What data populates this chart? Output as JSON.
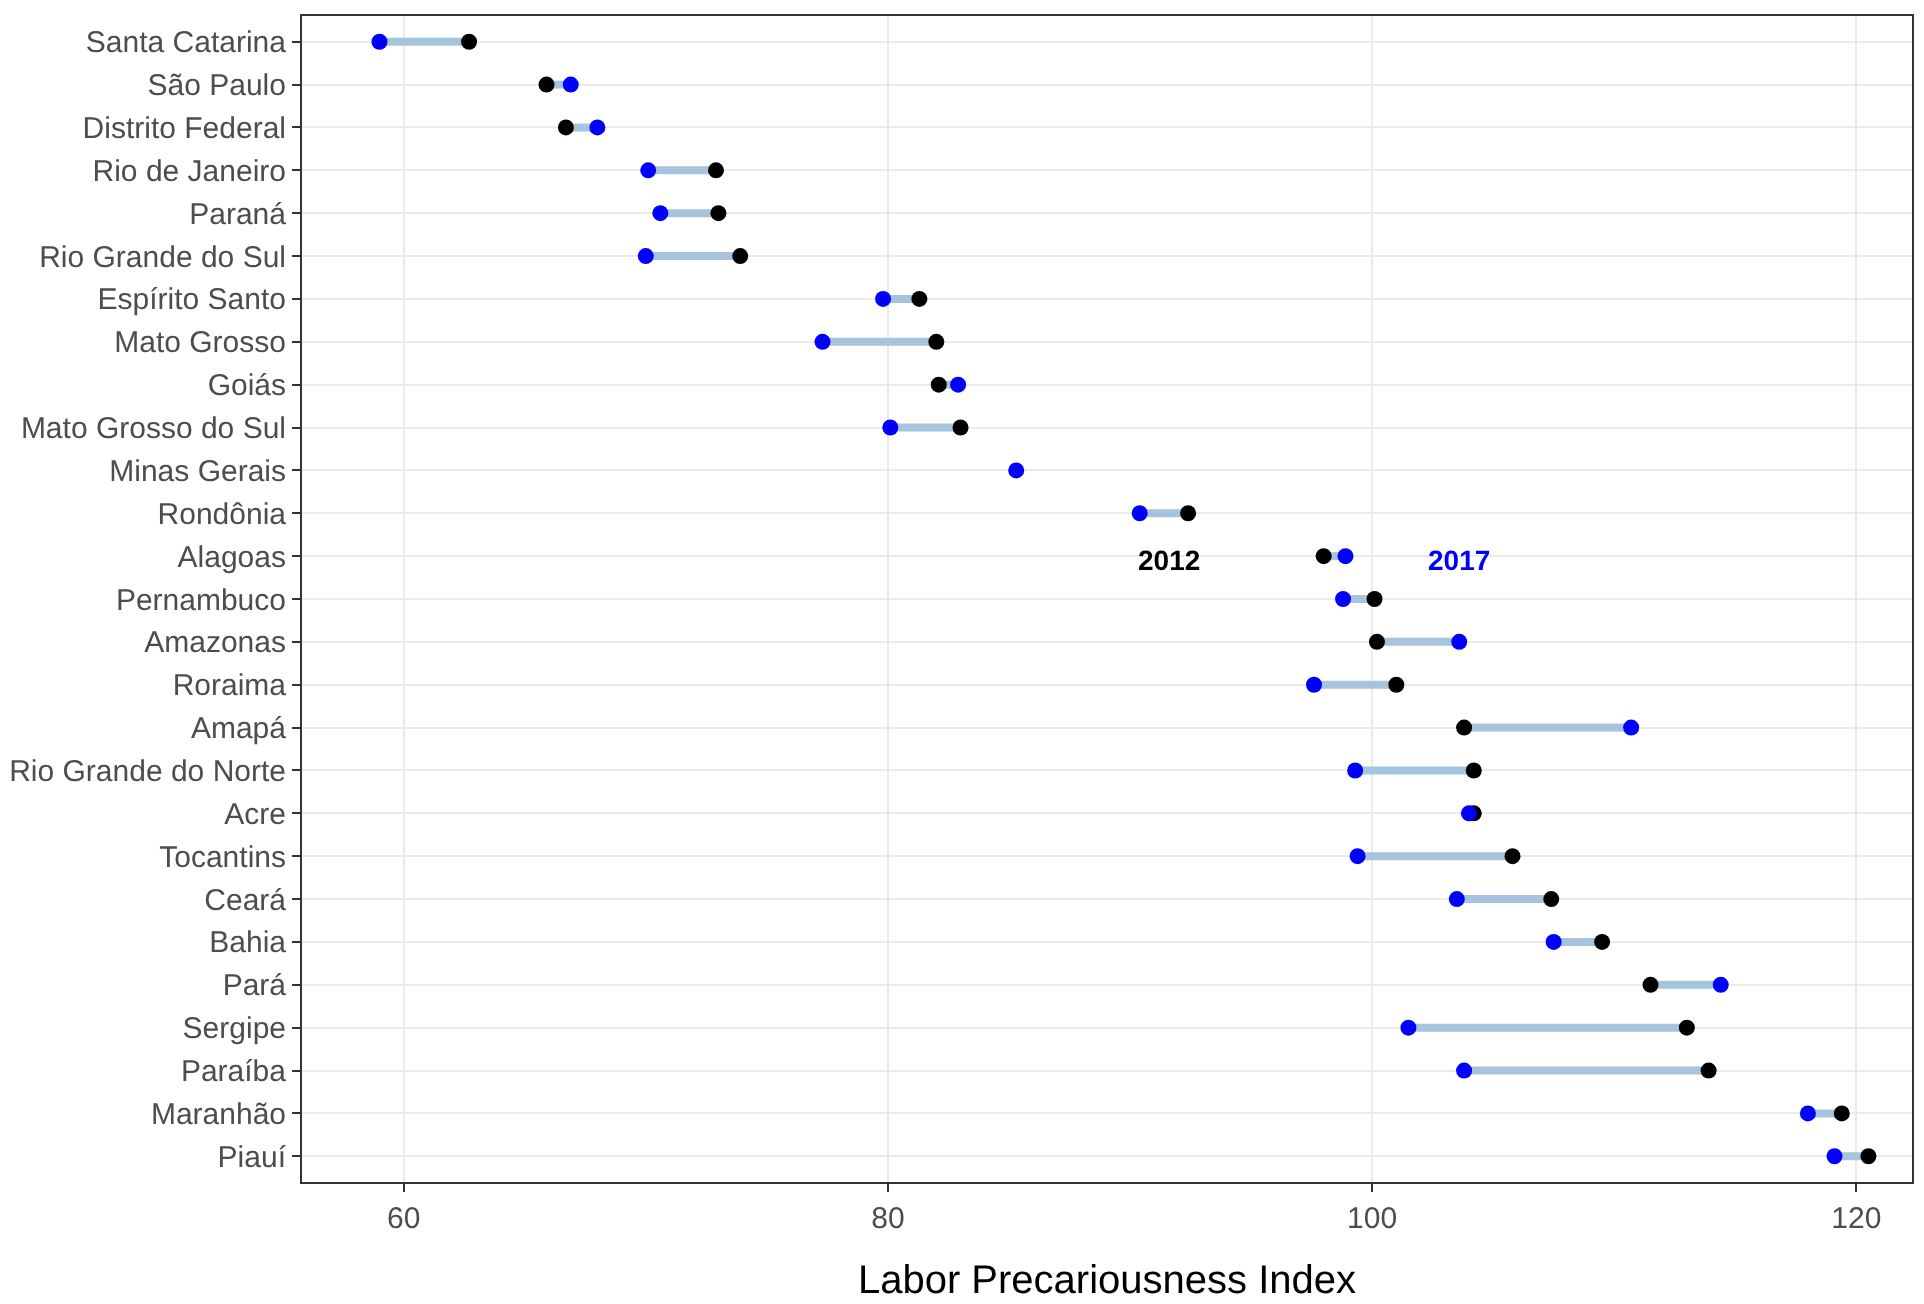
{
  "chart_data": {
    "type": "scatter",
    "orientation": "horizontal",
    "xlabel": "Labor Precariousness Index",
    "categories": [
      "Santa Catarina",
      "São Paulo",
      "Distrito Federal",
      "Rio de Janeiro",
      "Paraná",
      "Rio Grande do Sul",
      "Espírito Santo",
      "Mato Grosso",
      "Goiás",
      "Mato Grosso do Sul",
      "Minas Gerais",
      "Rondônia",
      "Alagoas",
      "Pernambuco",
      "Amazonas",
      "Roraima",
      "Amapá",
      "Rio Grande do Norte",
      "Acre",
      "Tocantins",
      "Ceará",
      "Bahia",
      "Pará",
      "Sergipe",
      "Paraíba",
      "Maranhão",
      "Piauí"
    ],
    "series": [
      {
        "name": "2012",
        "color": "#000000",
        "values": [
          62.7,
          65.9,
          66.7,
          72.9,
          73.0,
          73.9,
          81.3,
          82.0,
          82.1,
          83.0,
          null,
          92.4,
          98.0,
          100.1,
          100.2,
          101.0,
          103.8,
          104.2,
          104.2,
          105.8,
          107.4,
          109.5,
          111.5,
          113.0,
          113.9,
          119.4,
          120.5
        ]
      },
      {
        "name": "2017",
        "color": "#0000ff",
        "values": [
          59.0,
          66.9,
          68.0,
          70.1,
          70.6,
          70.0,
          79.8,
          77.3,
          82.9,
          80.1,
          85.3,
          90.4,
          98.9,
          98.8,
          103.6,
          97.6,
          110.7,
          99.3,
          104.0,
          99.4,
          103.5,
          107.5,
          114.4,
          101.5,
          103.8,
          118.0,
          119.1
        ]
      }
    ],
    "xlim": [
      55.8,
      122.3
    ],
    "xticks": [
      60,
      80,
      100,
      120
    ],
    "grid": true,
    "legend": false,
    "marker": "circle"
  }
}
